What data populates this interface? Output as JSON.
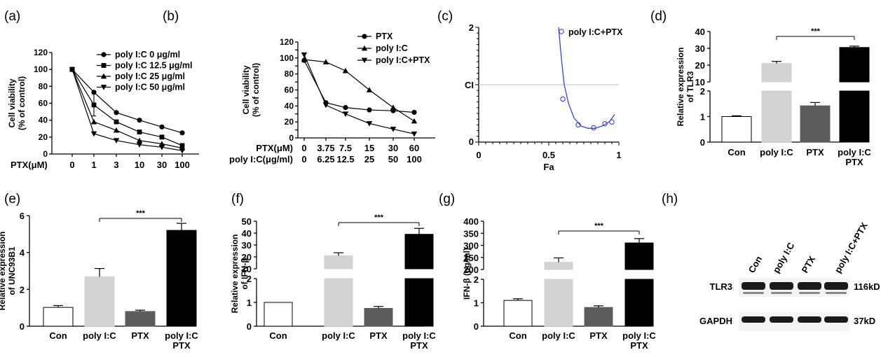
{
  "panel_labels": [
    "(a)",
    "(b)",
    "(c)",
    "(d)",
    "(e)",
    "(f)",
    "(g)",
    "(h)"
  ],
  "chart_data": [
    {
      "panel": "(a)",
      "type": "line",
      "ylabel": "Cell viability\n(% of control)",
      "x_axis_prefix": "PTX(μM)",
      "categories": [
        "0",
        "1",
        "3",
        "10",
        "30",
        "100"
      ],
      "ylim": [
        0,
        120
      ],
      "yticks": [
        0,
        20,
        40,
        60,
        80,
        100,
        120
      ],
      "legend": "top-right",
      "series": [
        {
          "name": "poly I:C 0 μg/ml",
          "marker": "circle",
          "values": [
            100,
            73,
            49,
            40,
            32,
            25
          ]
        },
        {
          "name": "poly I:C 12.5 μg/ml",
          "marker": "square",
          "values": [
            100,
            58,
            38,
            26,
            20,
            10
          ]
        },
        {
          "name": "poly I:C 25 μg/ml",
          "marker": "triangle-up",
          "values": [
            100,
            38,
            28,
            16,
            12,
            7
          ]
        },
        {
          "name": "poly I:C 50 μg/ml",
          "marker": "triangle-down",
          "values": [
            100,
            24,
            16,
            11,
            8,
            4
          ]
        }
      ],
      "error_bars": [
        {
          "series": 1,
          "index": 1,
          "err": 13
        }
      ]
    },
    {
      "panel": "(b)",
      "type": "line",
      "ylabel": "Cell viability\n(% of control)",
      "x_axis_prefix": [
        "PTX(μM)",
        "poly I:C(μg/ml)"
      ],
      "categories": [
        "0",
        "3.75",
        "7.5",
        "15",
        "30",
        "60"
      ],
      "categories_second_row": [
        "0",
        "6.25",
        "12.5",
        "25",
        "50",
        "100"
      ],
      "ylim": [
        0,
        120
      ],
      "yticks": [
        0,
        10,
        20,
        30,
        40,
        50,
        60,
        70,
        80,
        90,
        100,
        110,
        120
      ],
      "yticklabels": [
        "0",
        "20",
        "40",
        "60",
        "80",
        "100",
        "120"
      ],
      "legend": "top-right",
      "series": [
        {
          "name": "PTX",
          "marker": "circle",
          "values": [
            97,
            44,
            38,
            35,
            34,
            32
          ]
        },
        {
          "name": "poly I:C",
          "marker": "triangle-up",
          "values": [
            98,
            95,
            84,
            60,
            38,
            21
          ]
        },
        {
          "name": "poly I:C+PTX",
          "marker": "triangle-down",
          "values": [
            104,
            41,
            30,
            18,
            11,
            5
          ]
        }
      ]
    },
    {
      "panel": "(c)",
      "type": "scatter",
      "xlabel": "Fa",
      "ylabel": "CI",
      "xlim": [
        0,
        1
      ],
      "ylim": [
        0,
        2
      ],
      "xticks": [
        "0",
        "0.5",
        "1"
      ],
      "yticks": [
        "0",
        "2"
      ],
      "reference_line": 1,
      "legend": "top-right",
      "series": [
        {
          "name": "poly I:C+PTX",
          "x": [
            0.6,
            0.71,
            0.82,
            0.9,
            0.95
          ],
          "y": [
            0.75,
            0.3,
            0.25,
            0.32,
            0.35
          ]
        }
      ],
      "fit_curve": [
        [
          0.57,
          2.0
        ],
        [
          0.59,
          1.45
        ],
        [
          0.61,
          1.0
        ],
        [
          0.64,
          0.68
        ],
        [
          0.68,
          0.42
        ],
        [
          0.73,
          0.28
        ],
        [
          0.78,
          0.24
        ],
        [
          0.83,
          0.24
        ],
        [
          0.88,
          0.28
        ],
        [
          0.93,
          0.35
        ],
        [
          0.97,
          0.48
        ]
      ]
    },
    {
      "panel": "(d)",
      "type": "bar",
      "ylabel": "Relative expression\nof TLR3",
      "categories": [
        "Con",
        "poly I:C",
        "PTX",
        "poly I:C\nPTX"
      ],
      "values": [
        1.0,
        21,
        1.42,
        30.5
      ],
      "errors": [
        0.03,
        1.2,
        0.13,
        0.8
      ],
      "axis_break": {
        "lower": [
          0,
          2
        ],
        "upper": [
          10,
          40
        ]
      },
      "yticks_lower": [
        "0",
        "1",
        "2"
      ],
      "yticks_upper": [
        "10",
        "20",
        "30",
        "40"
      ],
      "colors": [
        "#ffffff",
        "#d3d3d3",
        "#5c5c5c",
        "#000000"
      ],
      "significance": {
        "from": 1,
        "to": 3,
        "label": "***"
      }
    },
    {
      "panel": "(e)",
      "type": "bar",
      "ylabel": "Relative expression\nof UNC93B1",
      "categories": [
        "Con",
        "poly I:C",
        "PTX",
        "poly I:C\nPTX"
      ],
      "values": [
        1.02,
        2.68,
        0.8,
        5.2
      ],
      "errors": [
        0.1,
        0.45,
        0.07,
        0.38
      ],
      "ylim": [
        0,
        6
      ],
      "yticks": [
        "0",
        "2",
        "4",
        "6"
      ],
      "colors": [
        "#ffffff",
        "#d3d3d3",
        "#5c5c5c",
        "#000000"
      ],
      "significance": {
        "from": 1,
        "to": 3,
        "label": "***"
      }
    },
    {
      "panel": "(f)",
      "type": "bar",
      "ylabel": "Relative expression\nof IFN-β",
      "categories": [
        "Con",
        "poly I:C",
        "PTX",
        "poly I:C\nPTX"
      ],
      "values": [
        1.0,
        21,
        0.75,
        39
      ],
      "errors": [
        0.0,
        2.5,
        0.08,
        5
      ],
      "axis_break": {
        "lower": [
          0,
          2
        ],
        "upper": [
          10,
          50
        ]
      },
      "yticks_lower": [
        "0",
        "1",
        "2"
      ],
      "yticks_upper": [
        "10",
        "20",
        "30",
        "40",
        "50"
      ],
      "colors": [
        "#ffffff",
        "#d3d3d3",
        "#5c5c5c",
        "#000000"
      ],
      "significance": {
        "from": 1,
        "to": 3,
        "label": "***"
      }
    },
    {
      "panel": "(g)",
      "type": "bar",
      "ylabel": "IFN-β (pg/ml)",
      "categories": [
        "Con",
        "poly I:C",
        "PTX",
        "poly I:C\nPTX"
      ],
      "values": [
        1.1,
        230,
        0.8,
        310
      ],
      "errors": [
        0.07,
        18,
        0.07,
        18
      ],
      "axis_break": {
        "lower": [
          0,
          2
        ],
        "upper": [
          200,
          400
        ]
      },
      "yticks_lower": [
        "0",
        "1",
        "2"
      ],
      "yticks_upper": [
        "200",
        "250",
        "300",
        "350",
        "400"
      ],
      "colors": [
        "#ffffff",
        "#d3d3d3",
        "#5c5c5c",
        "#000000"
      ],
      "significance": {
        "from": 1,
        "to": 3,
        "label": "***"
      }
    }
  ],
  "western_blot": {
    "panel": "(h)",
    "lanes": [
      "Con",
      "poly I:C",
      "PTX",
      "poly I:C+PTX"
    ],
    "rows": [
      {
        "label": "TLR3",
        "size": "116kD"
      },
      {
        "label": "GAPDH",
        "size": "37kD"
      }
    ]
  }
}
